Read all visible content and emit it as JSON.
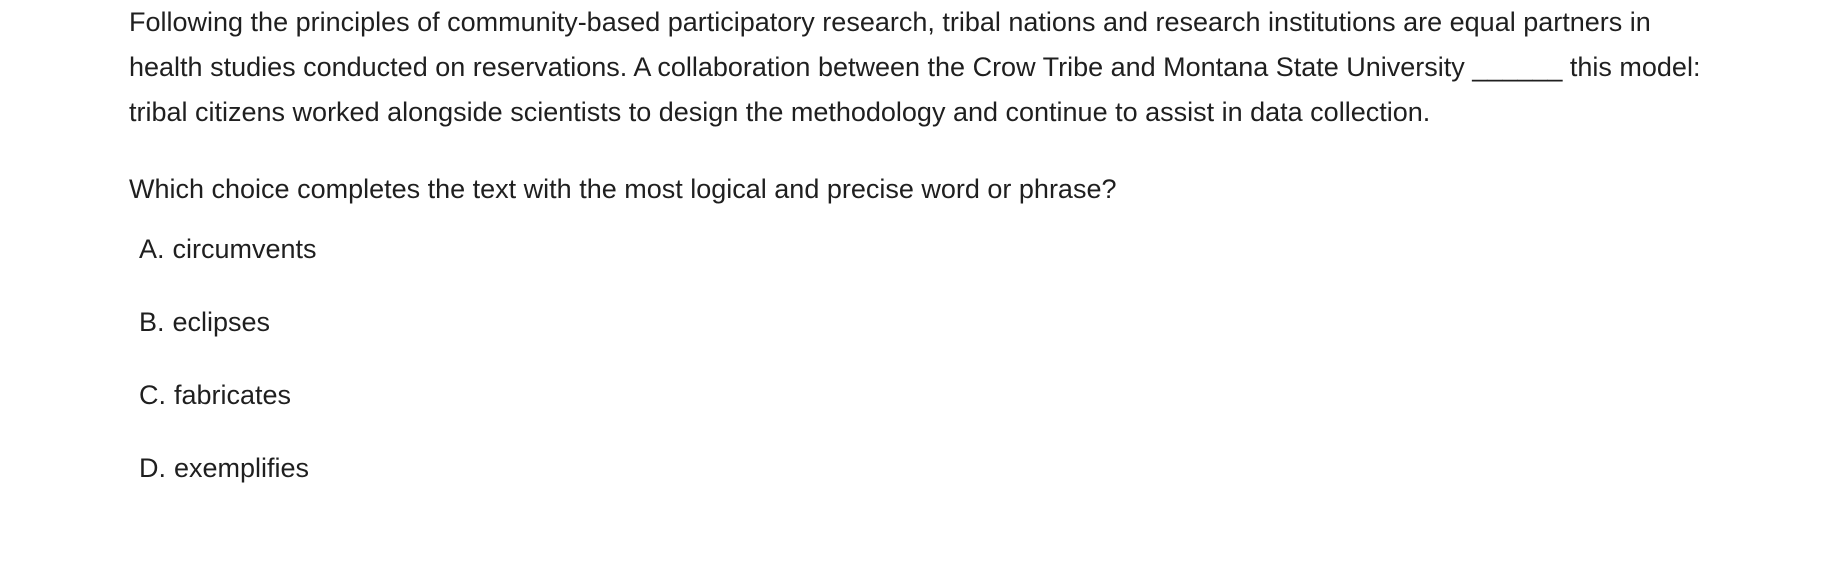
{
  "question": {
    "passage": "Following the principles of community-based participatory research, tribal nations and research institutions are equal partners in health studies conducted on reservations. A collaboration between the Crow Tribe and Montana State University ______ this model: tribal citizens worked alongside scientists to design the methodology and continue to assist in data collection.",
    "prompt": "Which choice completes the text with the most logical and precise word or phrase?",
    "choices": [
      {
        "letter": "A.",
        "text": "circumvents"
      },
      {
        "letter": "B.",
        "text": "eclipses"
      },
      {
        "letter": "C.",
        "text": "fabricates"
      },
      {
        "letter": "D.",
        "text": "exemplifies"
      }
    ]
  }
}
